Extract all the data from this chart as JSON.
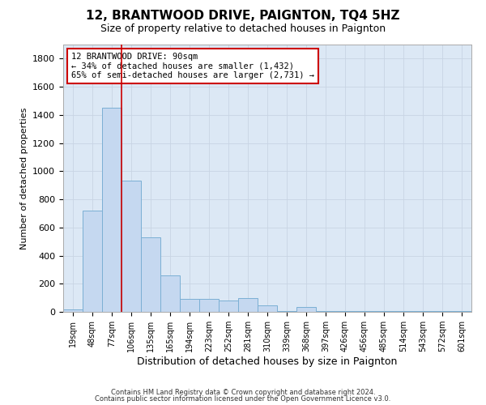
{
  "title": "12, BRANTWOOD DRIVE, PAIGNTON, TQ4 5HZ",
  "subtitle": "Size of property relative to detached houses in Paignton",
  "xlabel": "Distribution of detached houses by size in Paignton",
  "ylabel": "Number of detached properties",
  "categories": [
    "19sqm",
    "48sqm",
    "77sqm",
    "106sqm",
    "135sqm",
    "165sqm",
    "194sqm",
    "223sqm",
    "252sqm",
    "281sqm",
    "310sqm",
    "339sqm",
    "368sqm",
    "397sqm",
    "426sqm",
    "456sqm",
    "485sqm",
    "514sqm",
    "543sqm",
    "572sqm",
    "601sqm"
  ],
  "values": [
    18,
    720,
    1450,
    930,
    530,
    260,
    90,
    95,
    82,
    100,
    48,
    5,
    35,
    5,
    5,
    5,
    5,
    5,
    5,
    5,
    5
  ],
  "bar_color": "#c5d8f0",
  "bar_edge_color": "#7bafd4",
  "bar_linewidth": 0.7,
  "redline_x": 2.5,
  "annotation_line1": "12 BRANTWOOD DRIVE: 90sqm",
  "annotation_line2": "← 34% of detached houses are smaller (1,432)",
  "annotation_line3": "65% of semi-detached houses are larger (2,731) →",
  "annotation_box_color": "#ffffff",
  "annotation_box_edge": "#cc0000",
  "redline_color": "#cc0000",
  "grid_color": "#c8d4e4",
  "plot_bg_color": "#dce8f5",
  "ylim": [
    0,
    1900
  ],
  "yticks": [
    0,
    200,
    400,
    600,
    800,
    1000,
    1200,
    1400,
    1600,
    1800
  ],
  "footer1": "Contains HM Land Registry data © Crown copyright and database right 2024.",
  "footer2": "Contains public sector information licensed under the Open Government Licence v3.0.",
  "title_fontsize": 11,
  "subtitle_fontsize": 9,
  "tick_fontsize": 7,
  "ylabel_fontsize": 8,
  "xlabel_fontsize": 9
}
